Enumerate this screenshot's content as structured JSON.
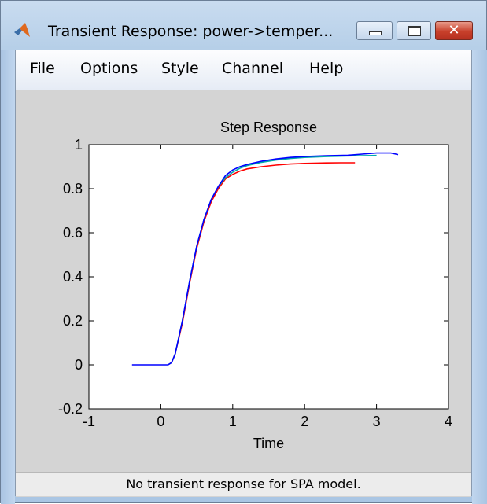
{
  "window": {
    "title": "Transient Response: power->temper...",
    "minimize_label": "",
    "maximize_label": "",
    "close_label": "✕"
  },
  "menu": {
    "items": [
      "File",
      "Options",
      "Style",
      "Channel",
      "Help"
    ]
  },
  "status": {
    "text": "No transient response for SPA model."
  },
  "chart_data": {
    "type": "line",
    "title": "Step Response",
    "xlabel": "Time",
    "ylabel": "",
    "xlim": [
      -1,
      4
    ],
    "ylim": [
      -0.2,
      1
    ],
    "xticks": [
      "-1",
      "0",
      "1",
      "2",
      "3",
      "4"
    ],
    "yticks": [
      "-0.2",
      "0",
      "0.2",
      "0.4",
      "0.6",
      "0.8",
      "1"
    ],
    "grid": false,
    "series": [
      {
        "color": "#0000ff",
        "x": [
          -0.4,
          0.1,
          0.15,
          0.2,
          0.3,
          0.4,
          0.5,
          0.6,
          0.7,
          0.8,
          0.9,
          1.0,
          1.1,
          1.2,
          1.4,
          1.6,
          1.8,
          2.0,
          2.3,
          2.6,
          2.8,
          3.0,
          3.2,
          3.3
        ],
        "y": [
          0.0,
          0.0,
          0.01,
          0.05,
          0.2,
          0.38,
          0.54,
          0.66,
          0.75,
          0.81,
          0.86,
          0.885,
          0.9,
          0.91,
          0.925,
          0.935,
          0.942,
          0.946,
          0.95,
          0.952,
          0.957,
          0.962,
          0.962,
          0.955
        ]
      },
      {
        "color": "#00aaaa",
        "x": [
          0.1,
          0.15,
          0.2,
          0.3,
          0.4,
          0.5,
          0.6,
          0.7,
          0.8,
          0.9,
          1.0,
          1.1,
          1.2,
          1.4,
          1.6,
          1.8,
          2.0,
          2.3,
          2.6,
          2.8,
          3.0
        ],
        "y": [
          0.0,
          0.01,
          0.05,
          0.2,
          0.38,
          0.54,
          0.66,
          0.75,
          0.81,
          0.85,
          0.875,
          0.893,
          0.905,
          0.92,
          0.93,
          0.937,
          0.942,
          0.946,
          0.949,
          0.95,
          0.951
        ]
      },
      {
        "color": "#ff0000",
        "x": [
          0.1,
          0.15,
          0.2,
          0.3,
          0.4,
          0.5,
          0.6,
          0.7,
          0.8,
          0.9,
          1.0,
          1.1,
          1.2,
          1.4,
          1.6,
          1.8,
          2.0,
          2.3,
          2.5,
          2.7
        ],
        "y": [
          0.0,
          0.01,
          0.05,
          0.19,
          0.37,
          0.53,
          0.65,
          0.74,
          0.8,
          0.845,
          0.865,
          0.88,
          0.89,
          0.9,
          0.907,
          0.912,
          0.915,
          0.917,
          0.918,
          0.918
        ]
      }
    ]
  }
}
